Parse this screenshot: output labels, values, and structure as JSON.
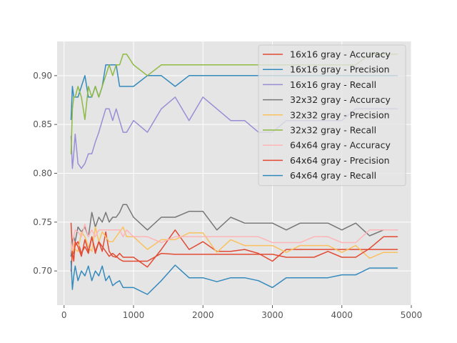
{
  "chart_data": {
    "type": "line",
    "title": "",
    "xlabel": "",
    "ylabel": "",
    "xlim": [
      -100,
      5000
    ],
    "ylim": [
      0.665,
      0.935
    ],
    "xticks": [
      0,
      1000,
      2000,
      3000,
      4000,
      5000
    ],
    "yticks": [
      0.7,
      0.75,
      0.8,
      0.85,
      0.9
    ],
    "xtick_labels": [
      "0",
      "1000",
      "2000",
      "3000",
      "4000",
      "5000"
    ],
    "ytick_labels": [
      "0.70",
      "0.75",
      "0.80",
      "0.85",
      "0.90"
    ],
    "grid": true,
    "legend_position": "top-right",
    "series": [
      {
        "name": "16x16 gray - Accuracy",
        "color": "#E24A33",
        "x": [
          100,
          120,
          140,
          160,
          200,
          250,
          300,
          350,
          400,
          450,
          500,
          550,
          600,
          650,
          700,
          750,
          800,
          850,
          900,
          1000,
          1200,
          1400,
          1600,
          1800,
          2000,
          2200,
          2400,
          2600,
          2800,
          3000,
          3200,
          3400,
          3600,
          3800,
          4000,
          4200,
          4400,
          4600,
          4800
        ],
        "y": [
          0.749,
          0.72,
          0.718,
          0.726,
          0.73,
          0.718,
          0.725,
          0.718,
          0.735,
          0.72,
          0.73,
          0.72,
          0.74,
          0.72,
          0.715,
          0.714,
          0.718,
          0.714,
          0.714,
          0.714,
          0.704,
          0.722,
          0.742,
          0.722,
          0.73,
          0.72,
          0.72,
          0.722,
          0.718,
          0.71,
          0.722,
          0.722,
          0.722,
          0.722,
          0.722,
          0.722,
          0.722,
          0.722,
          0.722
        ]
      },
      {
        "name": "16x16 gray - Precision",
        "color": "#348ABD",
        "x": [
          100,
          120,
          140,
          160,
          200,
          250,
          300,
          350,
          400,
          450,
          500,
          550,
          600,
          650,
          700,
          750,
          800,
          850,
          900,
          1000,
          1200,
          1400,
          1600,
          1800,
          2000,
          2200,
          2400,
          2600,
          2800,
          3000,
          3200,
          3400,
          3600,
          3800,
          4000,
          4200,
          4400,
          4600,
          4800
        ],
        "y": [
          0.855,
          0.889,
          0.878,
          0.878,
          0.878,
          0.889,
          0.9,
          0.878,
          0.878,
          0.889,
          0.878,
          0.889,
          0.911,
          0.911,
          0.911,
          0.911,
          0.889,
          0.889,
          0.889,
          0.889,
          0.9,
          0.9,
          0.889,
          0.9,
          0.9,
          0.9,
          0.9,
          0.9,
          0.9,
          0.9,
          0.9,
          0.9,
          0.9,
          0.9,
          0.9,
          0.9,
          0.9,
          0.9,
          0.9
        ]
      },
      {
        "name": "16x16 gray - Recall",
        "color": "#988ED5",
        "x": [
          100,
          120,
          140,
          160,
          200,
          250,
          300,
          350,
          400,
          450,
          500,
          550,
          600,
          650,
          700,
          750,
          800,
          850,
          900,
          1000,
          1200,
          1400,
          1600,
          1800,
          2000,
          2200,
          2400,
          2600,
          2800,
          3000,
          3200,
          3400,
          3600,
          3800,
          4000,
          4200,
          4400,
          4600,
          4800
        ],
        "y": [
          0.838,
          0.805,
          0.82,
          0.84,
          0.81,
          0.805,
          0.81,
          0.82,
          0.82,
          0.832,
          0.842,
          0.854,
          0.866,
          0.866,
          0.854,
          0.866,
          0.854,
          0.842,
          0.842,
          0.854,
          0.842,
          0.866,
          0.878,
          0.854,
          0.878,
          0.866,
          0.854,
          0.854,
          0.842,
          0.842,
          0.854,
          0.854,
          0.854,
          0.854,
          0.854,
          0.866,
          0.866,
          0.866,
          0.866
        ]
      },
      {
        "name": "32x32 gray - Accuracy",
        "color": "#777777",
        "x": [
          100,
          120,
          140,
          160,
          200,
          250,
          300,
          350,
          400,
          450,
          500,
          550,
          600,
          650,
          700,
          750,
          800,
          850,
          900,
          1000,
          1200,
          1400,
          1600,
          1800,
          2000,
          2200,
          2400,
          2600,
          2800,
          3000,
          3200,
          3400,
          3600,
          3800,
          4000,
          4200,
          4400,
          4600,
          4800
        ],
        "y": [
          0.715,
          0.73,
          0.735,
          0.73,
          0.745,
          0.74,
          0.745,
          0.735,
          0.76,
          0.745,
          0.755,
          0.75,
          0.76,
          0.75,
          0.755,
          0.755,
          0.76,
          0.768,
          0.768,
          0.755,
          0.742,
          0.755,
          0.755,
          0.761,
          0.761,
          0.742,
          0.755,
          0.749,
          0.749,
          0.749,
          0.742,
          0.749,
          0.749,
          0.749,
          0.742,
          0.749,
          0.736,
          0.742,
          0.742
        ]
      },
      {
        "name": "32x32 gray - Precision",
        "color": "#FBC15E",
        "x": [
          100,
          120,
          140,
          160,
          200,
          250,
          300,
          350,
          400,
          450,
          500,
          550,
          600,
          650,
          700,
          750,
          800,
          850,
          900,
          1000,
          1200,
          1400,
          1600,
          1800,
          2000,
          2200,
          2400,
          2600,
          2800,
          3000,
          3200,
          3400,
          3600,
          3800,
          4000,
          4200,
          4400,
          4600,
          4800
        ],
        "y": [
          0.73,
          0.715,
          0.728,
          0.722,
          0.72,
          0.74,
          0.735,
          0.725,
          0.72,
          0.745,
          0.73,
          0.74,
          0.735,
          0.73,
          0.73,
          0.735,
          0.74,
          0.745,
          0.735,
          0.735,
          0.722,
          0.732,
          0.732,
          0.739,
          0.739,
          0.719,
          0.732,
          0.726,
          0.726,
          0.726,
          0.719,
          0.726,
          0.726,
          0.726,
          0.719,
          0.726,
          0.713,
          0.719,
          0.719
        ]
      },
      {
        "name": "32x32 gray - Recall",
        "color": "#8EBA42",
        "x": [
          100,
          120,
          140,
          160,
          200,
          250,
          300,
          350,
          400,
          450,
          500,
          550,
          600,
          650,
          700,
          750,
          800,
          850,
          900,
          1000,
          1200,
          1400,
          1600,
          1800,
          2000,
          2200,
          2400,
          2600,
          2800,
          3000,
          3200,
          3400,
          3600,
          3800,
          4000,
          4200,
          4400,
          4600,
          4800
        ],
        "y": [
          0.82,
          0.866,
          0.878,
          0.878,
          0.889,
          0.878,
          0.855,
          0.889,
          0.878,
          0.889,
          0.878,
          0.889,
          0.9,
          0.911,
          0.9,
          0.911,
          0.911,
          0.922,
          0.922,
          0.911,
          0.9,
          0.911,
          0.911,
          0.911,
          0.911,
          0.911,
          0.911,
          0.911,
          0.911,
          0.911,
          0.911,
          0.911,
          0.911,
          0.911,
          0.911,
          0.911,
          0.922,
          0.922,
          0.922
        ]
      },
      {
        "name": "64x64 gray - Accuracy",
        "color": "#FFB5B8",
        "x": [
          100,
          120,
          140,
          160,
          200,
          250,
          300,
          350,
          400,
          450,
          500,
          550,
          600,
          650,
          700,
          750,
          800,
          850,
          900,
          1000,
          1200,
          1400,
          1600,
          1800,
          2000,
          2200,
          2400,
          2600,
          2800,
          3000,
          3200,
          3400,
          3600,
          3800,
          4000,
          4200,
          4400,
          4600,
          4800
        ],
        "y": [
          0.73,
          0.72,
          0.735,
          0.742,
          0.74,
          0.735,
          0.748,
          0.735,
          0.742,
          0.735,
          0.742,
          0.742,
          0.742,
          0.742,
          0.742,
          0.742,
          0.742,
          0.735,
          0.742,
          0.735,
          0.735,
          0.729,
          0.735,
          0.735,
          0.735,
          0.735,
          0.735,
          0.735,
          0.735,
          0.729,
          0.729,
          0.729,
          0.735,
          0.735,
          0.729,
          0.729,
          0.742,
          0.742,
          0.742
        ]
      },
      {
        "name": "64x64 gray - Precision",
        "color": "#E24A33",
        "x": [
          100,
          120,
          140,
          160,
          200,
          250,
          300,
          350,
          400,
          450,
          500,
          550,
          600,
          650,
          700,
          750,
          800,
          850,
          900,
          1000,
          1200,
          1400,
          1600,
          1800,
          2000,
          2200,
          2400,
          2600,
          2800,
          3000,
          3200,
          3400,
          3600,
          3800,
          4000,
          4200,
          4400,
          4600,
          4800
        ],
        "y": [
          0.7,
          0.72,
          0.71,
          0.73,
          0.725,
          0.715,
          0.732,
          0.72,
          0.735,
          0.718,
          0.73,
          0.725,
          0.72,
          0.715,
          0.718,
          0.715,
          0.712,
          0.71,
          0.71,
          0.71,
          0.71,
          0.718,
          0.717,
          0.717,
          0.717,
          0.717,
          0.717,
          0.717,
          0.717,
          0.717,
          0.714,
          0.714,
          0.714,
          0.72,
          0.714,
          0.714,
          0.723,
          0.735,
          0.735
        ]
      },
      {
        "name": "64x64 gray - Recall",
        "color": "#348ABD",
        "x": [
          100,
          120,
          140,
          160,
          200,
          250,
          300,
          350,
          400,
          450,
          500,
          550,
          600,
          650,
          700,
          750,
          800,
          850,
          900,
          1000,
          1200,
          1400,
          1600,
          1800,
          2000,
          2200,
          2400,
          2600,
          2800,
          3000,
          3200,
          3400,
          3600,
          3800,
          4000,
          4200,
          4400,
          4600,
          4800
        ],
        "y": [
          0.71,
          0.681,
          0.695,
          0.705,
          0.69,
          0.7,
          0.695,
          0.705,
          0.69,
          0.7,
          0.695,
          0.705,
          0.69,
          0.695,
          0.685,
          0.688,
          0.69,
          0.683,
          0.683,
          0.683,
          0.676,
          0.69,
          0.706,
          0.693,
          0.693,
          0.689,
          0.693,
          0.693,
          0.69,
          0.683,
          0.693,
          0.693,
          0.693,
          0.693,
          0.696,
          0.696,
          0.703,
          0.703,
          0.703
        ]
      }
    ]
  }
}
